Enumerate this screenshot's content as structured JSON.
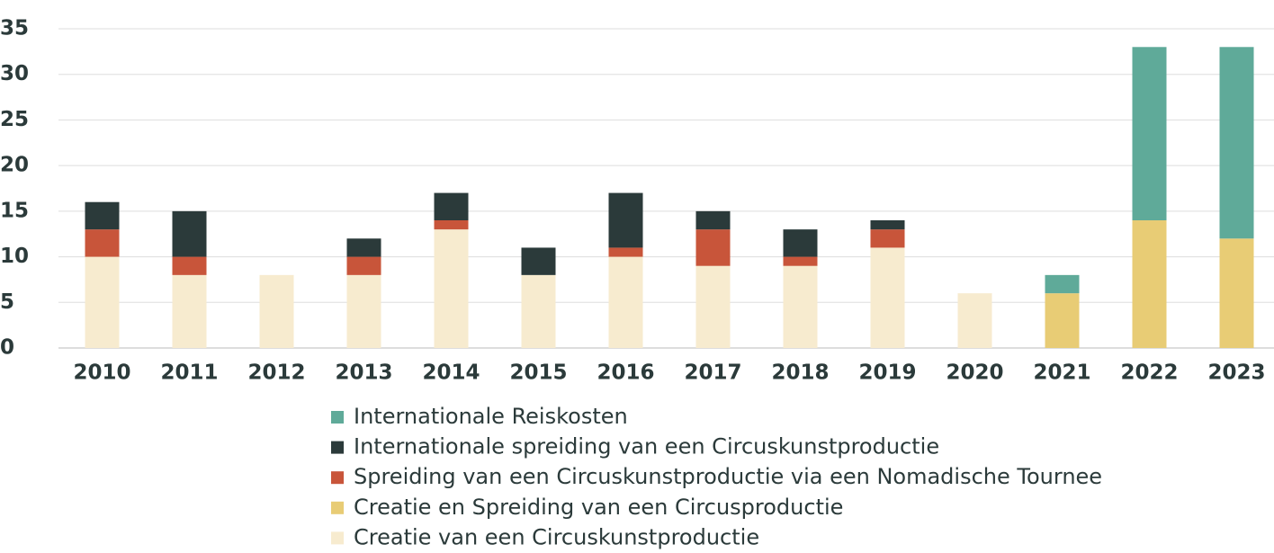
{
  "chart_data": {
    "type": "bar",
    "stacked": true,
    "categories": [
      "2010",
      "2011",
      "2012",
      "2013",
      "2014",
      "2015",
      "2016",
      "2017",
      "2018",
      "2019",
      "2020",
      "2021",
      "2022",
      "2023"
    ],
    "series": [
      {
        "name": "Creatie van een Circuskunstproductie",
        "color": "#f7ebcf",
        "values": [
          10,
          8,
          8,
          8,
          13,
          8,
          10,
          9,
          9,
          11,
          6,
          0,
          0,
          0
        ]
      },
      {
        "name": "Creatie en Spreiding van een Circusproductie",
        "color": "#e8cc75",
        "values": [
          0,
          0,
          0,
          0,
          0,
          0,
          0,
          0,
          0,
          0,
          0,
          6,
          14,
          12
        ]
      },
      {
        "name": "Spreiding van een Circuskunstproductie via een Nomadische Tournee",
        "color": "#c8553a",
        "values": [
          3,
          2,
          0,
          2,
          1,
          0,
          1,
          4,
          1,
          2,
          0,
          0,
          0,
          0
        ]
      },
      {
        "name": "Internationale spreiding van een Circuskunstproductie",
        "color": "#2b3a3a",
        "values": [
          3,
          5,
          0,
          2,
          3,
          3,
          6,
          2,
          3,
          1,
          0,
          0,
          0,
          0
        ]
      },
      {
        "name": "Internationale Reiskosten",
        "color": "#5faa99",
        "values": [
          0,
          0,
          0,
          0,
          0,
          0,
          0,
          0,
          0,
          0,
          0,
          2,
          19,
          21
        ]
      }
    ],
    "ylim": [
      0,
      35
    ],
    "yticks": [
      0,
      5,
      10,
      15,
      20,
      25,
      30,
      35
    ],
    "grid": true,
    "legend": "bottom"
  }
}
